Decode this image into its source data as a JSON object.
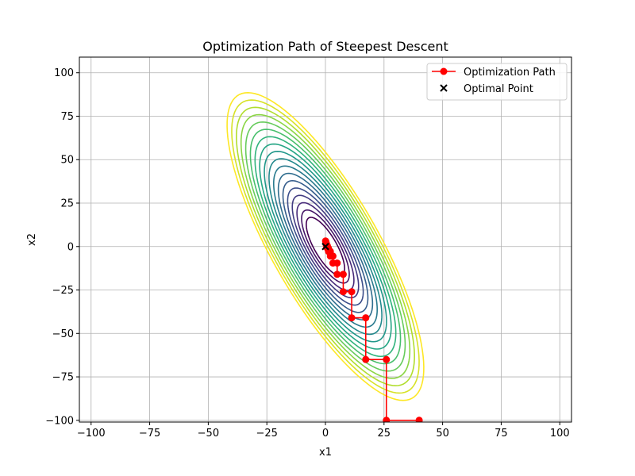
{
  "chart_data": {
    "type": "line",
    "title": "Optimization Path of Steepest Descent",
    "xlabel": "x1",
    "ylabel": "x2",
    "xlim": [
      -105,
      105
    ],
    "ylim": [
      -101,
      109
    ],
    "x_ticks": [
      -100,
      -75,
      -50,
      -25,
      0,
      25,
      50,
      75,
      100
    ],
    "y_ticks": [
      -100,
      -75,
      -50,
      -25,
      0,
      25,
      50,
      75,
      100
    ],
    "x_tick_labels": [
      "−100",
      "−75",
      "−50",
      "−25",
      "0",
      "25",
      "50",
      "75",
      "100"
    ],
    "y_tick_labels": [
      "−100",
      "−75",
      "−50",
      "−25",
      "0",
      "25",
      "50",
      "75",
      "100"
    ],
    "grid": true,
    "legend_position": "top-right",
    "contour": {
      "center": [
        0,
        0
      ],
      "levels": 18,
      "colormap": "viridis",
      "orientation_deg": -68,
      "major_semi_axis_range": [
        18,
        95
      ],
      "minor_semi_axis_range": [
        5,
        24
      ]
    },
    "series": [
      {
        "name": "Optimization Path",
        "color": "#ff0000",
        "marker": "circle",
        "x": [
          40,
          26,
          26,
          17.2,
          17.2,
          11.2,
          11.2,
          7.6,
          7.6,
          5.0,
          5.0,
          3.2,
          3.2,
          2.1,
          2.1,
          1.3,
          1.3,
          0.8,
          0.8,
          0.4,
          0.4,
          0.2,
          0.2,
          0.05
        ],
        "y": [
          -100,
          -100,
          -65,
          -65,
          -41,
          -41,
          -26,
          -26,
          -16,
          -16,
          -9.5,
          -9.5,
          -5.5,
          -5.5,
          -2.8,
          -2.8,
          -1,
          -1,
          0.5,
          0.5,
          1.8,
          1.8,
          2.8,
          3.2
        ]
      }
    ],
    "optimal_point": {
      "name": "Optimal Point",
      "x": 0,
      "y": 0,
      "marker": "x",
      "color": "#000000"
    }
  }
}
